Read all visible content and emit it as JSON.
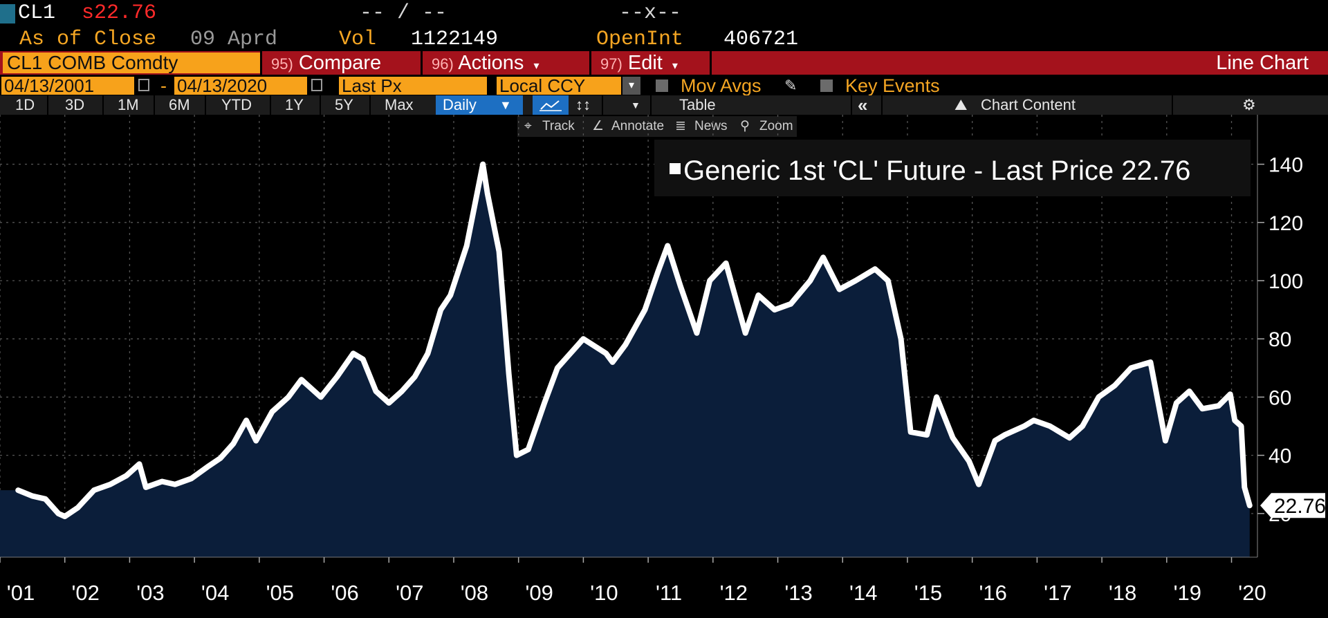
{
  "header": {
    "ticker": "CL1",
    "price_prefix": "s",
    "price": "22.76",
    "dash_left": "-- / --",
    "dash_right": "--x--",
    "as_of_label": "As of Close",
    "as_of_value": "09 Aprd",
    "vol_label": "Vol",
    "vol_value": "1122149",
    "oi_label": "OpenInt",
    "oi_value": "406721"
  },
  "toolbar": {
    "security": "CL1 COMB Comdty",
    "compare_num": "95)",
    "compare_label": "Compare",
    "actions_num": "96)",
    "actions_label": "Actions",
    "edit_num": "97)",
    "edit_label": "Edit",
    "chart_type": "Line Chart"
  },
  "settings": {
    "start_date": "04/13/2001",
    "date_sep": "-",
    "end_date": "04/13/2020",
    "field": "Last Px",
    "currency": "Local CCY",
    "mov_avgs": "Mov Avgs",
    "key_events": "Key Events"
  },
  "periods": [
    "1D",
    "3D",
    "1M",
    "6M",
    "YTD",
    "1Y",
    "5Y",
    "Max"
  ],
  "frequency": "Daily",
  "table_label": "Table",
  "chart_content_label": "Chart Content",
  "tools": {
    "track": "Track",
    "annotate": "Annotate",
    "news": "News",
    "zoom": "Zoom"
  },
  "colors": {
    "area_fill": "#0b1e3a",
    "line": "#ffffff",
    "accent_orange": "#f7a21b",
    "toolbar_red": "#a4121c",
    "price_red": "#ff2a2a"
  },
  "chart_data": {
    "type": "area",
    "title": "",
    "legend": "Generic 1st 'CL' Future - Last Price 22.76",
    "legend_position": "top-right",
    "last_value": 22.76,
    "last_value_label": "22.76",
    "xlabel": "",
    "ylabel": "",
    "xlim": [
      2001.0,
      2020.4
    ],
    "ylim": [
      5,
      157
    ],
    "yticks": [
      20,
      40,
      60,
      80,
      100,
      120,
      140
    ],
    "ytick_labels": [
      "20",
      "40",
      "60",
      "80",
      "100",
      "120",
      "140"
    ],
    "xticks": [
      2001,
      2002,
      2003,
      2004,
      2005,
      2006,
      2007,
      2008,
      2009,
      2010,
      2011,
      2012,
      2013,
      2014,
      2015,
      2016,
      2017,
      2018,
      2019,
      2020
    ],
    "xtick_labels": [
      "'01",
      "'02",
      "'03",
      "'04",
      "'05",
      "'06",
      "'07",
      "'08",
      "'09",
      "'10",
      "'11",
      "'12",
      "'13",
      "'14",
      "'15",
      "'16",
      "'17",
      "'18",
      "'19",
      "'20"
    ],
    "grid": true,
    "series": [
      {
        "name": "Generic 1st 'CL' Future - Last Price",
        "x": [
          2001.28,
          2001.5,
          2001.7,
          2001.9,
          2002.0,
          2002.2,
          2002.45,
          2002.7,
          2002.95,
          2003.15,
          2003.25,
          2003.5,
          2003.7,
          2003.95,
          2004.2,
          2004.4,
          2004.6,
          2004.8,
          2004.95,
          2005.2,
          2005.45,
          2005.65,
          2005.95,
          2006.2,
          2006.45,
          2006.6,
          2006.8,
          2007.0,
          2007.2,
          2007.4,
          2007.6,
          2007.8,
          2007.95,
          2008.2,
          2008.45,
          2008.52,
          2008.7,
          2008.85,
          2008.97,
          2009.15,
          2009.4,
          2009.6,
          2009.8,
          2010.0,
          2010.35,
          2010.45,
          2010.65,
          2010.95,
          2011.15,
          2011.3,
          2011.5,
          2011.75,
          2011.95,
          2012.2,
          2012.4,
          2012.5,
          2012.7,
          2012.95,
          2013.2,
          2013.5,
          2013.7,
          2013.95,
          2014.2,
          2014.5,
          2014.7,
          2014.9,
          2015.05,
          2015.3,
          2015.45,
          2015.7,
          2015.95,
          2016.1,
          2016.35,
          2016.5,
          2016.8,
          2016.95,
          2017.2,
          2017.5,
          2017.7,
          2017.95,
          2018.2,
          2018.45,
          2018.75,
          2018.98,
          2019.15,
          2019.35,
          2019.55,
          2019.8,
          2019.98,
          2020.05,
          2020.15,
          2020.2,
          2020.28
        ],
        "values": [
          28,
          26,
          25,
          20,
          19,
          22,
          28,
          30,
          33,
          37,
          29,
          31,
          30,
          32,
          36,
          39,
          44,
          52,
          45,
          55,
          60,
          66,
          60,
          67,
          75,
          73,
          62,
          58,
          62,
          67,
          75,
          90,
          95,
          112,
          140,
          130,
          110,
          68,
          40,
          42,
          58,
          70,
          75,
          80,
          75,
          72,
          78,
          90,
          103,
          112,
          98,
          82,
          100,
          106,
          90,
          82,
          95,
          90,
          92,
          100,
          108,
          97,
          100,
          104,
          100,
          80,
          48,
          47,
          60,
          46,
          38,
          30,
          45,
          47,
          50,
          52,
          50,
          46,
          50,
          60,
          64,
          70,
          72,
          45,
          58,
          62,
          56,
          57,
          61,
          52,
          50,
          29,
          22.76
        ]
      }
    ]
  }
}
